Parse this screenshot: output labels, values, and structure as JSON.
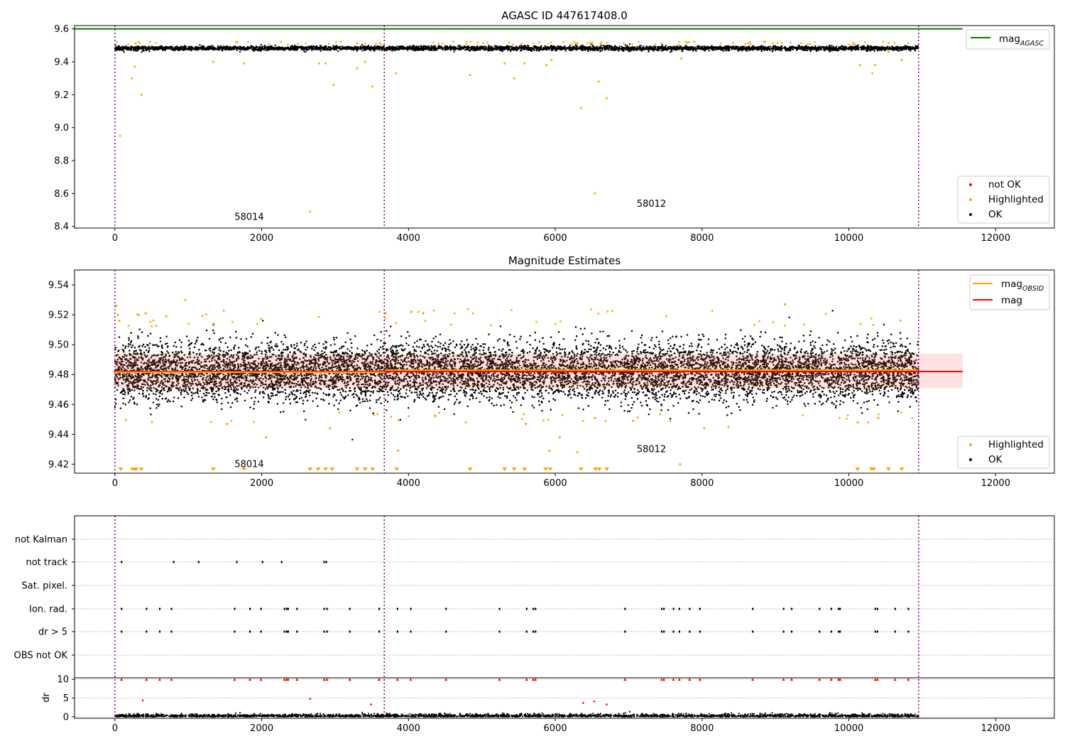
{
  "colors": {
    "ok": "#000000",
    "highlighted": "#ffa500",
    "not_ok": "#ff0000",
    "mag_agasc": "#008000",
    "mag_obsid": "#ffa500",
    "mag": "#ff0000",
    "band": "#ffc8c8",
    "obsid_boundary": "#800080",
    "grid": "#b0b0b0"
  },
  "chart_data": [
    {
      "type": "scatter",
      "title": "AGASC ID 447617408.0",
      "xlim": [
        -550,
        12800
      ],
      "ylim": [
        8.39,
        9.62
      ],
      "x_ticks": [
        0,
        2000,
        4000,
        6000,
        8000,
        10000,
        12000
      ],
      "y_ticks": [
        8.4,
        8.6,
        8.8,
        9.0,
        9.2,
        9.4,
        9.6
      ],
      "lines": [
        {
          "name_main": "mag",
          "name_sub": "AGASC",
          "y": 9.6,
          "x_range": [
            -550,
            11550
          ],
          "color": "#008000"
        }
      ],
      "legend_lines_placement": "top-right",
      "legend_points": [
        "not OK",
        "Highlighted",
        "OK"
      ],
      "legend_points_placement": "bottom-right",
      "ok_band": {
        "x_range": [
          0,
          10950
        ],
        "center": 9.482,
        "spread": 0.012
      },
      "highlighted_points": [
        [
          70,
          8.95
        ],
        [
          230,
          9.3
        ],
        [
          270,
          9.37
        ],
        [
          360,
          9.2
        ],
        [
          1340,
          9.4
        ],
        [
          1760,
          9.39
        ],
        [
          2660,
          8.49
        ],
        [
          2780,
          9.39
        ],
        [
          2870,
          9.39
        ],
        [
          2980,
          9.26
        ],
        [
          3300,
          9.36
        ],
        [
          3410,
          9.4
        ],
        [
          3510,
          9.25
        ],
        [
          3830,
          9.33
        ],
        [
          4840,
          9.32
        ],
        [
          5310,
          9.39
        ],
        [
          5440,
          9.3
        ],
        [
          5580,
          9.39
        ],
        [
          5880,
          9.38
        ],
        [
          5950,
          9.41
        ],
        [
          6350,
          9.12
        ],
        [
          6540,
          8.6
        ],
        [
          6590,
          9.28
        ],
        [
          6700,
          9.18
        ],
        [
          7720,
          9.42
        ],
        [
          10150,
          9.38
        ],
        [
          10320,
          9.33
        ],
        [
          10360,
          9.38
        ],
        [
          10540,
          9.46
        ],
        [
          10720,
          9.41
        ]
      ],
      "obsid_boundaries": [
        0,
        3670,
        10950
      ],
      "obsid_labels": [
        {
          "text": "58014",
          "x": 1830,
          "y": 8.44
        },
        {
          "text": "58012",
          "x": 7310,
          "y": 8.52
        }
      ]
    },
    {
      "type": "scatter",
      "title": "Magnitude Estimates",
      "xlim": [
        -550,
        12800
      ],
      "ylim": [
        9.414,
        9.55
      ],
      "x_ticks": [
        0,
        2000,
        4000,
        6000,
        8000,
        10000,
        12000
      ],
      "y_ticks": [
        9.42,
        9.44,
        9.46,
        9.48,
        9.5,
        9.52,
        9.54
      ],
      "mag": {
        "value": 9.482,
        "band": [
          9.471,
          9.494
        ],
        "x_range": [
          -10,
          11550
        ]
      },
      "mag_obsid": [
        {
          "x_range": [
            0,
            3670
          ],
          "value": 9.4815
        },
        {
          "x_range": [
            3670,
            10950
          ],
          "value": 9.483
        }
      ],
      "legend_lines": [
        {
          "main": "mag",
          "sub": "OBSID"
        },
        {
          "main": "mag",
          "sub": ""
        }
      ],
      "legend_lines_placement": "top-right",
      "legend_points": [
        "Highlighted",
        "OK"
      ],
      "legend_points_placement": "bottom-right",
      "highlighted_points": [
        [
          20,
          9.526
        ],
        [
          40,
          9.52
        ],
        [
          60,
          9.516
        ],
        [
          420,
          9.521
        ],
        [
          700,
          9.519
        ],
        [
          960,
          9.53
        ],
        [
          1530,
          9.447
        ],
        [
          2060,
          9.438
        ],
        [
          2930,
          9.444
        ],
        [
          3690,
          9.521
        ],
        [
          3860,
          9.429
        ],
        [
          4040,
          9.522
        ],
        [
          4200,
          9.521
        ],
        [
          5600,
          9.447
        ],
        [
          5920,
          9.429
        ],
        [
          6060,
          9.438
        ],
        [
          6300,
          9.428
        ],
        [
          6540,
          9.451
        ],
        [
          7060,
          9.449
        ],
        [
          7700,
          9.42
        ],
        [
          8030,
          9.444
        ],
        [
          8360,
          9.445
        ],
        [
          9130,
          9.527
        ],
        [
          10120,
          9.448
        ],
        [
          10400,
          9.451
        ]
      ],
      "clipped_low_x": [
        80,
        240,
        270,
        290,
        360,
        1340,
        1760,
        2660,
        2770,
        2870,
        2960,
        3300,
        3410,
        3510,
        3840,
        4840,
        5310,
        5440,
        5580,
        5870,
        5930,
        6350,
        6550,
        6600,
        6700,
        10120,
        10310,
        10340,
        10540,
        10720
      ],
      "obsid_boundaries": [
        0,
        3670,
        10950
      ],
      "obsid_labels": [
        {
          "text": "58014",
          "x": 1830,
          "y": 9.418
        },
        {
          "text": "58012",
          "x": 7310,
          "y": 9.428
        }
      ]
    },
    {
      "type": "scatter",
      "title": "",
      "xlim": [
        -550,
        12800
      ],
      "x_ticks": [
        0,
        2000,
        4000,
        6000,
        8000,
        10000,
        12000
      ],
      "flag_rows": [
        "not Kalman",
        "not track",
        "Sat. pixel.",
        "Ion. rad.",
        "dr > 5",
        "OBS not OK"
      ],
      "flag_events": {
        "not track": [
          90,
          800,
          1140,
          1660,
          2010,
          2270,
          2850,
          2880
        ],
        "Ion. rad.": [
          90,
          430,
          610,
          770,
          1630,
          1840,
          1990,
          2310,
          2340,
          2360,
          2480,
          2850,
          2890,
          3200,
          3600,
          3850,
          4030,
          4510,
          5240,
          5610,
          5700,
          5730,
          6950,
          7450,
          7480,
          7610,
          7690,
          7830,
          7970,
          8690,
          9110,
          9220,
          9600,
          9760,
          9860,
          9880,
          10360,
          10390,
          10630,
          10810
        ],
        "dr > 5": [
          90,
          430,
          610,
          770,
          1630,
          1840,
          1990,
          2310,
          2340,
          2360,
          2480,
          2850,
          2890,
          3200,
          3600,
          3850,
          4030,
          4510,
          5240,
          5610,
          5700,
          5730,
          6950,
          7450,
          7480,
          7610,
          7690,
          7830,
          7970,
          8690,
          9110,
          9220,
          9600,
          9760,
          9860,
          9880,
          10360,
          10390,
          10630,
          10810
        ]
      },
      "dr": {
        "ylabel": "dr",
        "ylim": [
          -0.4,
          10.4
        ],
        "y_ticks": [
          0,
          5,
          10
        ],
        "clip_value": 10,
        "high_dr_points": [
          [
            380,
            4.4
          ],
          [
            2660,
            4.8
          ],
          [
            3490,
            3.3
          ],
          [
            6380,
            3.7
          ],
          [
            6530,
            4.1
          ],
          [
            6700,
            3.3
          ]
        ]
      },
      "obsid_boundaries": [
        0,
        3670,
        10950
      ]
    }
  ]
}
